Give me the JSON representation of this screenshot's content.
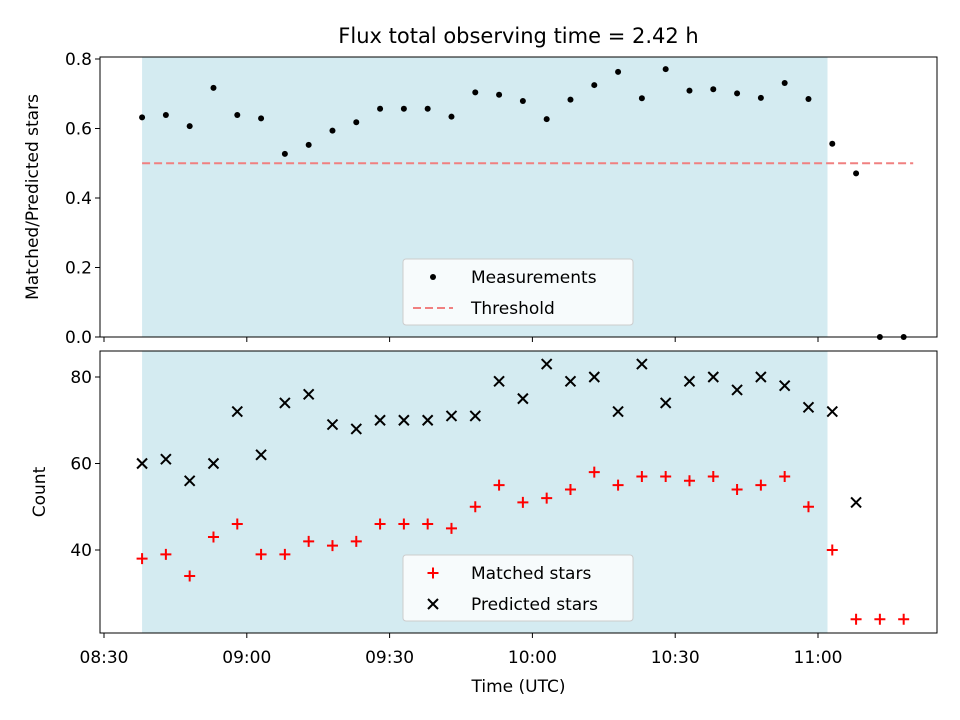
{
  "chart_data": [
    {
      "type": "scatter",
      "title": "Flux total observing time = 2.42 h",
      "xlabel": "",
      "ylabel": "Matched/Predicted stars",
      "ylim": [
        0,
        0.8
      ],
      "yticks": [
        "0.0",
        "0.2",
        "0.4",
        "0.6",
        "0.8"
      ],
      "x_range": [
        "08:30",
        "11:30"
      ],
      "shaded_span": [
        "08:38",
        "11:02"
      ],
      "threshold": {
        "value": 0.5,
        "x": [
          "08:38",
          "11:20"
        ]
      },
      "legend": {
        "placement": "lower-center",
        "entries": [
          "Measurements",
          "Threshold"
        ]
      },
      "series": [
        {
          "name": "Measurements",
          "x": [
            "08:38",
            "08:43",
            "08:48",
            "08:53",
            "08:58",
            "09:03",
            "09:08",
            "09:13",
            "09:18",
            "09:23",
            "09:28",
            "09:33",
            "09:38",
            "09:43",
            "09:48",
            "09:53",
            "09:58",
            "10:03",
            "10:08",
            "10:13",
            "10:18",
            "10:23",
            "10:28",
            "10:33",
            "10:38",
            "10:43",
            "10:48",
            "10:53",
            "10:58",
            "11:03",
            "11:08",
            "11:13",
            "11:18"
          ],
          "values": [
            0.632,
            0.639,
            0.607,
            0.717,
            0.639,
            0.629,
            0.527,
            0.553,
            0.594,
            0.618,
            0.657,
            0.657,
            0.657,
            0.634,
            0.704,
            0.697,
            0.679,
            0.627,
            0.683,
            0.725,
            0.763,
            0.687,
            0.771,
            0.709,
            0.713,
            0.701,
            0.688,
            0.731,
            0.685,
            0.556,
            0.471,
            0.0,
            0.0
          ]
        }
      ]
    },
    {
      "type": "scatter",
      "xlabel": "Time (UTC)",
      "ylabel": "Count",
      "yticks": [
        "40",
        "60",
        "80"
      ],
      "ylim": [
        21.5,
        86
      ],
      "x_range": [
        "08:30",
        "11:30"
      ],
      "xticks": [
        "08:30",
        "09:00",
        "09:30",
        "10:00",
        "10:30",
        "11:00"
      ],
      "shaded_span": [
        "08:38",
        "11:02"
      ],
      "legend": {
        "placement": "lower-center",
        "entries": [
          "Matched stars",
          "Predicted stars"
        ]
      },
      "series": [
        {
          "name": "Matched stars",
          "x": [
            "08:38",
            "08:43",
            "08:48",
            "08:53",
            "08:58",
            "09:03",
            "09:08",
            "09:13",
            "09:18",
            "09:23",
            "09:28",
            "09:33",
            "09:38",
            "09:43",
            "09:48",
            "09:53",
            "09:58",
            "10:03",
            "10:08",
            "10:13",
            "10:18",
            "10:23",
            "10:28",
            "10:33",
            "10:38",
            "10:43",
            "10:48",
            "10:53",
            "10:58",
            "11:03",
            "11:08",
            "11:13",
            "11:18"
          ],
          "values": [
            38,
            39,
            34,
            43,
            46,
            39,
            39,
            42,
            41,
            42,
            46,
            46,
            46,
            45,
            50,
            55,
            51,
            52,
            54,
            58,
            55,
            57,
            57,
            56,
            57,
            54,
            55,
            57,
            50,
            40,
            24,
            24,
            24
          ]
        },
        {
          "name": "Predicted stars",
          "x": [
            "08:38",
            "08:43",
            "08:48",
            "08:53",
            "08:58",
            "09:03",
            "09:08",
            "09:13",
            "09:18",
            "09:23",
            "09:28",
            "09:33",
            "09:38",
            "09:43",
            "09:48",
            "09:53",
            "09:58",
            "10:03",
            "10:08",
            "10:13",
            "10:18",
            "10:23",
            "10:28",
            "10:33",
            "10:38",
            "10:43",
            "10:48",
            "10:53",
            "10:58",
            "11:03",
            "11:08"
          ],
          "values": [
            60,
            61,
            56,
            60,
            72,
            62,
            74,
            76,
            69,
            68,
            70,
            70,
            70,
            71,
            71,
            79,
            75,
            83,
            79,
            80,
            72,
            83,
            74,
            79,
            80,
            77,
            80,
            78,
            73,
            72,
            51
          ]
        }
      ]
    }
  ]
}
